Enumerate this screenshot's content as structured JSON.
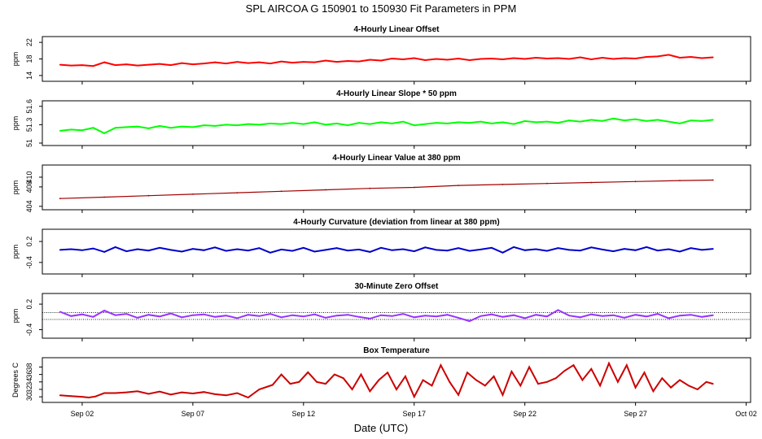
{
  "title": "SPL   AIRCOA G   150901 to 150930   Fit Parameters in PPM",
  "xlabel": "Date (UTC)",
  "x_ticks": [
    {
      "label": "Sep 02",
      "day": 2
    },
    {
      "label": "Sep 07",
      "day": 7
    },
    {
      "label": "Sep 12",
      "day": 12
    },
    {
      "label": "Sep 17",
      "day": 17
    },
    {
      "label": "Sep 22",
      "day": 22
    },
    {
      "label": "Sep 27",
      "day": 27
    },
    {
      "label": "Oct 02",
      "day": 32
    }
  ],
  "chart_data": [
    {
      "type": "line",
      "title": "4-Hourly Linear Offset",
      "ylabel": "ppm",
      "color": "#ff0000",
      "ylim": [
        12.6,
        23.4
      ],
      "yticks": [
        14,
        18,
        22
      ],
      "x": [
        1.0,
        1.5,
        2.0,
        2.5,
        3.0,
        3.5,
        4.0,
        4.5,
        5.0,
        5.5,
        6.0,
        6.5,
        7.0,
        7.5,
        8.0,
        8.5,
        9.0,
        9.5,
        10.0,
        10.5,
        11.0,
        11.5,
        12.0,
        12.5,
        13.0,
        13.5,
        14.0,
        14.5,
        15.0,
        15.5,
        16.0,
        16.5,
        17.0,
        17.5,
        18.0,
        18.5,
        19.0,
        19.5,
        20.0,
        20.5,
        21.0,
        21.5,
        22.0,
        22.5,
        23.0,
        23.5,
        24.0,
        24.5,
        25.0,
        25.5,
        26.0,
        26.5,
        27.0,
        27.5,
        28.0,
        28.5,
        29.0,
        29.5,
        30.0,
        30.5
      ],
      "y": [
        16.6,
        16.4,
        16.5,
        16.3,
        17.2,
        16.5,
        16.7,
        16.4,
        16.6,
        16.8,
        16.5,
        17.0,
        16.7,
        16.9,
        17.2,
        16.9,
        17.3,
        17.0,
        17.2,
        16.9,
        17.4,
        17.1,
        17.3,
        17.2,
        17.6,
        17.3,
        17.5,
        17.4,
        17.8,
        17.6,
        18.1,
        17.9,
        18.2,
        17.7,
        18.0,
        17.8,
        18.1,
        17.7,
        18.0,
        18.1,
        17.9,
        18.2,
        18.0,
        18.3,
        18.1,
        18.2,
        18.0,
        18.4,
        17.9,
        18.3,
        18.0,
        18.2,
        18.1,
        18.5,
        18.6,
        19.0,
        18.3,
        18.5,
        18.2,
        18.4
      ]
    },
    {
      "type": "line",
      "title": "4-Hourly Linear Slope * 50 ppm",
      "ylabel": "ppm",
      "color": "#00ff00",
      "ylim": [
        50.96,
        51.69
      ],
      "yticks": [
        51.0,
        51.3,
        51.6
      ],
      "x": [
        1.0,
        1.5,
        2.0,
        2.5,
        3.0,
        3.5,
        4.0,
        4.5,
        5.0,
        5.5,
        6.0,
        6.5,
        7.0,
        7.5,
        8.0,
        8.5,
        9.0,
        9.5,
        10.0,
        10.5,
        11.0,
        11.5,
        12.0,
        12.5,
        13.0,
        13.5,
        14.0,
        14.5,
        15.0,
        15.5,
        16.0,
        16.5,
        17.0,
        17.5,
        18.0,
        18.5,
        19.0,
        19.5,
        20.0,
        20.5,
        21.0,
        21.5,
        22.0,
        22.5,
        23.0,
        23.5,
        24.0,
        24.5,
        25.0,
        25.5,
        26.0,
        26.5,
        27.0,
        27.5,
        28.0,
        28.5,
        29.0,
        29.5,
        30.0,
        30.5
      ],
      "y": [
        51.2,
        51.22,
        51.21,
        51.25,
        51.16,
        51.25,
        51.26,
        51.27,
        51.24,
        51.28,
        51.25,
        51.27,
        51.26,
        51.29,
        51.28,
        51.3,
        51.29,
        51.31,
        51.3,
        51.32,
        51.31,
        51.33,
        51.31,
        51.34,
        51.3,
        51.32,
        51.29,
        51.33,
        51.31,
        51.34,
        51.32,
        51.35,
        51.29,
        51.31,
        51.33,
        51.32,
        51.34,
        51.33,
        51.35,
        51.32,
        51.34,
        51.31,
        51.36,
        51.34,
        51.35,
        51.33,
        51.37,
        51.35,
        51.38,
        51.36,
        51.4,
        51.37,
        51.39,
        51.36,
        51.38,
        51.35,
        51.32,
        51.37,
        51.36,
        51.38
      ]
    },
    {
      "type": "line",
      "title": "4-Hourly Linear Value at 380 ppm",
      "ylabel": "ppm",
      "color": "#a00000",
      "ylim": [
        403.3,
        412.5
      ],
      "yticks": [
        404,
        408,
        410
      ],
      "x": [
        1.0,
        3.0,
        5.0,
        7.0,
        9.0,
        11.0,
        13.0,
        15.0,
        17.0,
        19.0,
        21.0,
        23.0,
        25.0,
        27.0,
        29.0,
        30.5
      ],
      "y": [
        405.6,
        405.9,
        406.2,
        406.5,
        406.8,
        407.1,
        407.4,
        407.7,
        407.9,
        408.3,
        408.5,
        408.7,
        408.9,
        409.1,
        409.3,
        409.4
      ]
    },
    {
      "type": "line",
      "title": "4-Hourly Curvature (deviation from linear at 380 ppm)",
      "ylabel": "ppm",
      "color": "#0000cc",
      "ylim": [
        -0.73,
        0.55
      ],
      "yticks": [
        -0.4,
        0.2
      ],
      "x": [
        1.0,
        1.5,
        2.0,
        2.5,
        3.0,
        3.5,
        4.0,
        4.5,
        5.0,
        5.5,
        6.0,
        6.5,
        7.0,
        7.5,
        8.0,
        8.5,
        9.0,
        9.5,
        10.0,
        10.5,
        11.0,
        11.5,
        12.0,
        12.5,
        13.0,
        13.5,
        14.0,
        14.5,
        15.0,
        15.5,
        16.0,
        16.5,
        17.0,
        17.5,
        18.0,
        18.5,
        19.0,
        19.5,
        20.0,
        20.5,
        21.0,
        21.5,
        22.0,
        22.5,
        23.0,
        23.5,
        24.0,
        24.5,
        25.0,
        25.5,
        26.0,
        26.5,
        27.0,
        27.5,
        28.0,
        28.5,
        29.0,
        29.5,
        30.0,
        30.5
      ],
      "y": [
        -0.04,
        -0.02,
        -0.05,
        0.0,
        -0.1,
        0.04,
        -0.08,
        -0.02,
        -0.06,
        0.02,
        -0.04,
        -0.09,
        -0.01,
        -0.05,
        0.03,
        -0.07,
        -0.02,
        -0.06,
        0.01,
        -0.12,
        -0.03,
        -0.07,
        0.02,
        -0.09,
        -0.04,
        0.01,
        -0.06,
        -0.03,
        -0.1,
        0.02,
        -0.05,
        -0.02,
        -0.08,
        0.03,
        -0.04,
        -0.06,
        0.01,
        -0.07,
        -0.03,
        0.02,
        -0.12,
        0.04,
        -0.05,
        -0.02,
        -0.07,
        0.01,
        -0.04,
        -0.06,
        0.03,
        -0.03,
        -0.08,
        -0.01,
        -0.05,
        0.04,
        -0.06,
        -0.02,
        -0.09,
        0.01,
        -0.04,
        -0.01
      ]
    },
    {
      "type": "line",
      "title": "30-Minute Zero Offset",
      "ylabel": "ppm",
      "color": "#9933ff",
      "ylim": [
        -0.6,
        0.45
      ],
      "yticks": [
        -0.4,
        0.2
      ],
      "x": [
        1.0,
        1.5,
        2.0,
        2.5,
        3.0,
        3.5,
        4.0,
        4.5,
        5.0,
        5.5,
        6.0,
        6.5,
        7.0,
        7.5,
        8.0,
        8.5,
        9.0,
        9.5,
        10.0,
        10.5,
        11.0,
        11.5,
        12.0,
        12.5,
        13.0,
        13.5,
        14.0,
        14.5,
        15.0,
        15.5,
        16.0,
        16.5,
        17.0,
        17.5,
        18.0,
        18.5,
        19.0,
        19.5,
        20.0,
        20.5,
        21.0,
        21.5,
        22.0,
        22.5,
        23.0,
        23.5,
        24.0,
        24.5,
        25.0,
        25.5,
        26.0,
        26.5,
        27.0,
        27.5,
        28.0,
        28.5,
        29.0,
        29.5,
        30.0,
        30.5
      ],
      "y": [
        0.02,
        -0.08,
        -0.04,
        -0.1,
        0.05,
        -0.06,
        -0.03,
        -0.12,
        -0.05,
        -0.09,
        -0.02,
        -0.11,
        -0.06,
        -0.04,
        -0.1,
        -0.07,
        -0.13,
        -0.05,
        -0.08,
        -0.03,
        -0.11,
        -0.06,
        -0.09,
        -0.04,
        -0.12,
        -0.07,
        -0.05,
        -0.1,
        -0.14,
        -0.06,
        -0.08,
        -0.03,
        -0.11,
        -0.07,
        -0.09,
        -0.05,
        -0.12,
        -0.2,
        -0.08,
        -0.04,
        -0.1,
        -0.06,
        -0.13,
        -0.05,
        -0.09,
        0.06,
        -0.07,
        -0.11,
        -0.04,
        -0.08,
        -0.06,
        -0.12,
        -0.05,
        -0.09,
        -0.03,
        -0.13,
        -0.07,
        -0.05,
        -0.1,
        -0.06
      ],
      "ref_lines": [
        0.0,
        -0.16
      ]
    },
    {
      "type": "line",
      "title": "Box Temperature",
      "ylabel": "Degrees C",
      "color": "#cc0000",
      "ylim": [
        28.5,
        40.5
      ],
      "yticks": [
        30,
        32,
        34,
        36,
        38
      ],
      "x": [
        1.0,
        1.5,
        2.0,
        2.3,
        2.6,
        3.0,
        3.5,
        4.0,
        4.5,
        5.0,
        5.5,
        6.0,
        6.5,
        7.0,
        7.5,
        8.0,
        8.5,
        9.0,
        9.5,
        10.0,
        10.6,
        11.0,
        11.4,
        11.8,
        12.2,
        12.6,
        13.0,
        13.4,
        13.8,
        14.2,
        14.6,
        15.0,
        15.4,
        15.8,
        16.2,
        16.6,
        17.0,
        17.4,
        17.8,
        18.2,
        18.6,
        19.0,
        19.4,
        19.8,
        20.2,
        20.6,
        21.0,
        21.4,
        21.8,
        22.2,
        22.6,
        23.0,
        23.4,
        23.8,
        24.2,
        24.6,
        25.0,
        25.4,
        25.8,
        26.2,
        26.6,
        27.0,
        27.4,
        27.8,
        28.2,
        28.6,
        29.0,
        29.4,
        29.8,
        30.2,
        30.5
      ],
      "y": [
        30.4,
        30.2,
        30.0,
        29.8,
        30.1,
        31.0,
        31.0,
        31.2,
        31.5,
        30.8,
        31.4,
        30.6,
        31.2,
        30.9,
        31.3,
        30.7,
        30.4,
        31.0,
        29.8,
        32.0,
        33.2,
        36.0,
        33.5,
        34.0,
        36.6,
        34.0,
        33.5,
        36.0,
        35.0,
        32.0,
        36.0,
        31.5,
        34.5,
        36.5,
        32.0,
        35.5,
        30.0,
        34.5,
        33.0,
        38.5,
        34.0,
        30.5,
        36.5,
        34.5,
        33.0,
        35.5,
        30.5,
        36.8,
        33.0,
        38.0,
        33.5,
        34.0,
        35.0,
        37.0,
        38.5,
        34.5,
        37.5,
        33.0,
        39.0,
        34.0,
        38.5,
        32.5,
        36.5,
        31.5,
        35.0,
        32.5,
        34.5,
        33.0,
        32.0,
        34.0,
        33.5
      ]
    }
  ]
}
